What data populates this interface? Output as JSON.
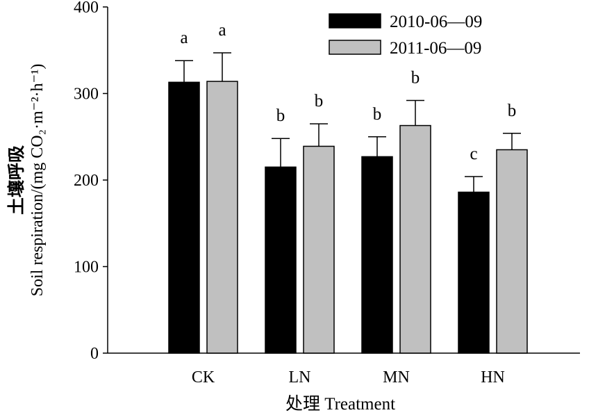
{
  "chart_data": {
    "type": "bar",
    "title": "",
    "categories": [
      "CK",
      "LN",
      "MN",
      "HN"
    ],
    "series": [
      {
        "name": "2010-06—09",
        "color": "#000000",
        "values": [
          313,
          215,
          227,
          186
        ],
        "errors": [
          25,
          33,
          23,
          18
        ],
        "letters": [
          "a",
          "b",
          "b",
          "c"
        ]
      },
      {
        "name": "2011-06—09",
        "color": "#c0c0c0",
        "values": [
          314,
          239,
          263,
          235
        ],
        "errors": [
          33,
          26,
          29,
          19
        ],
        "letters": [
          "a",
          "b",
          "b",
          "b"
        ]
      }
    ],
    "ylim": [
      0,
      400
    ],
    "yticks": [
      0,
      100,
      200,
      300,
      400
    ],
    "xlabel": "处理 Treatment",
    "ylabel_cn": "土壤呼吸",
    "ylabel_en": "Soil respiration/(mg CO₂·m⁻²·h⁻¹)",
    "grid": false,
    "legend_position": "top-right"
  }
}
